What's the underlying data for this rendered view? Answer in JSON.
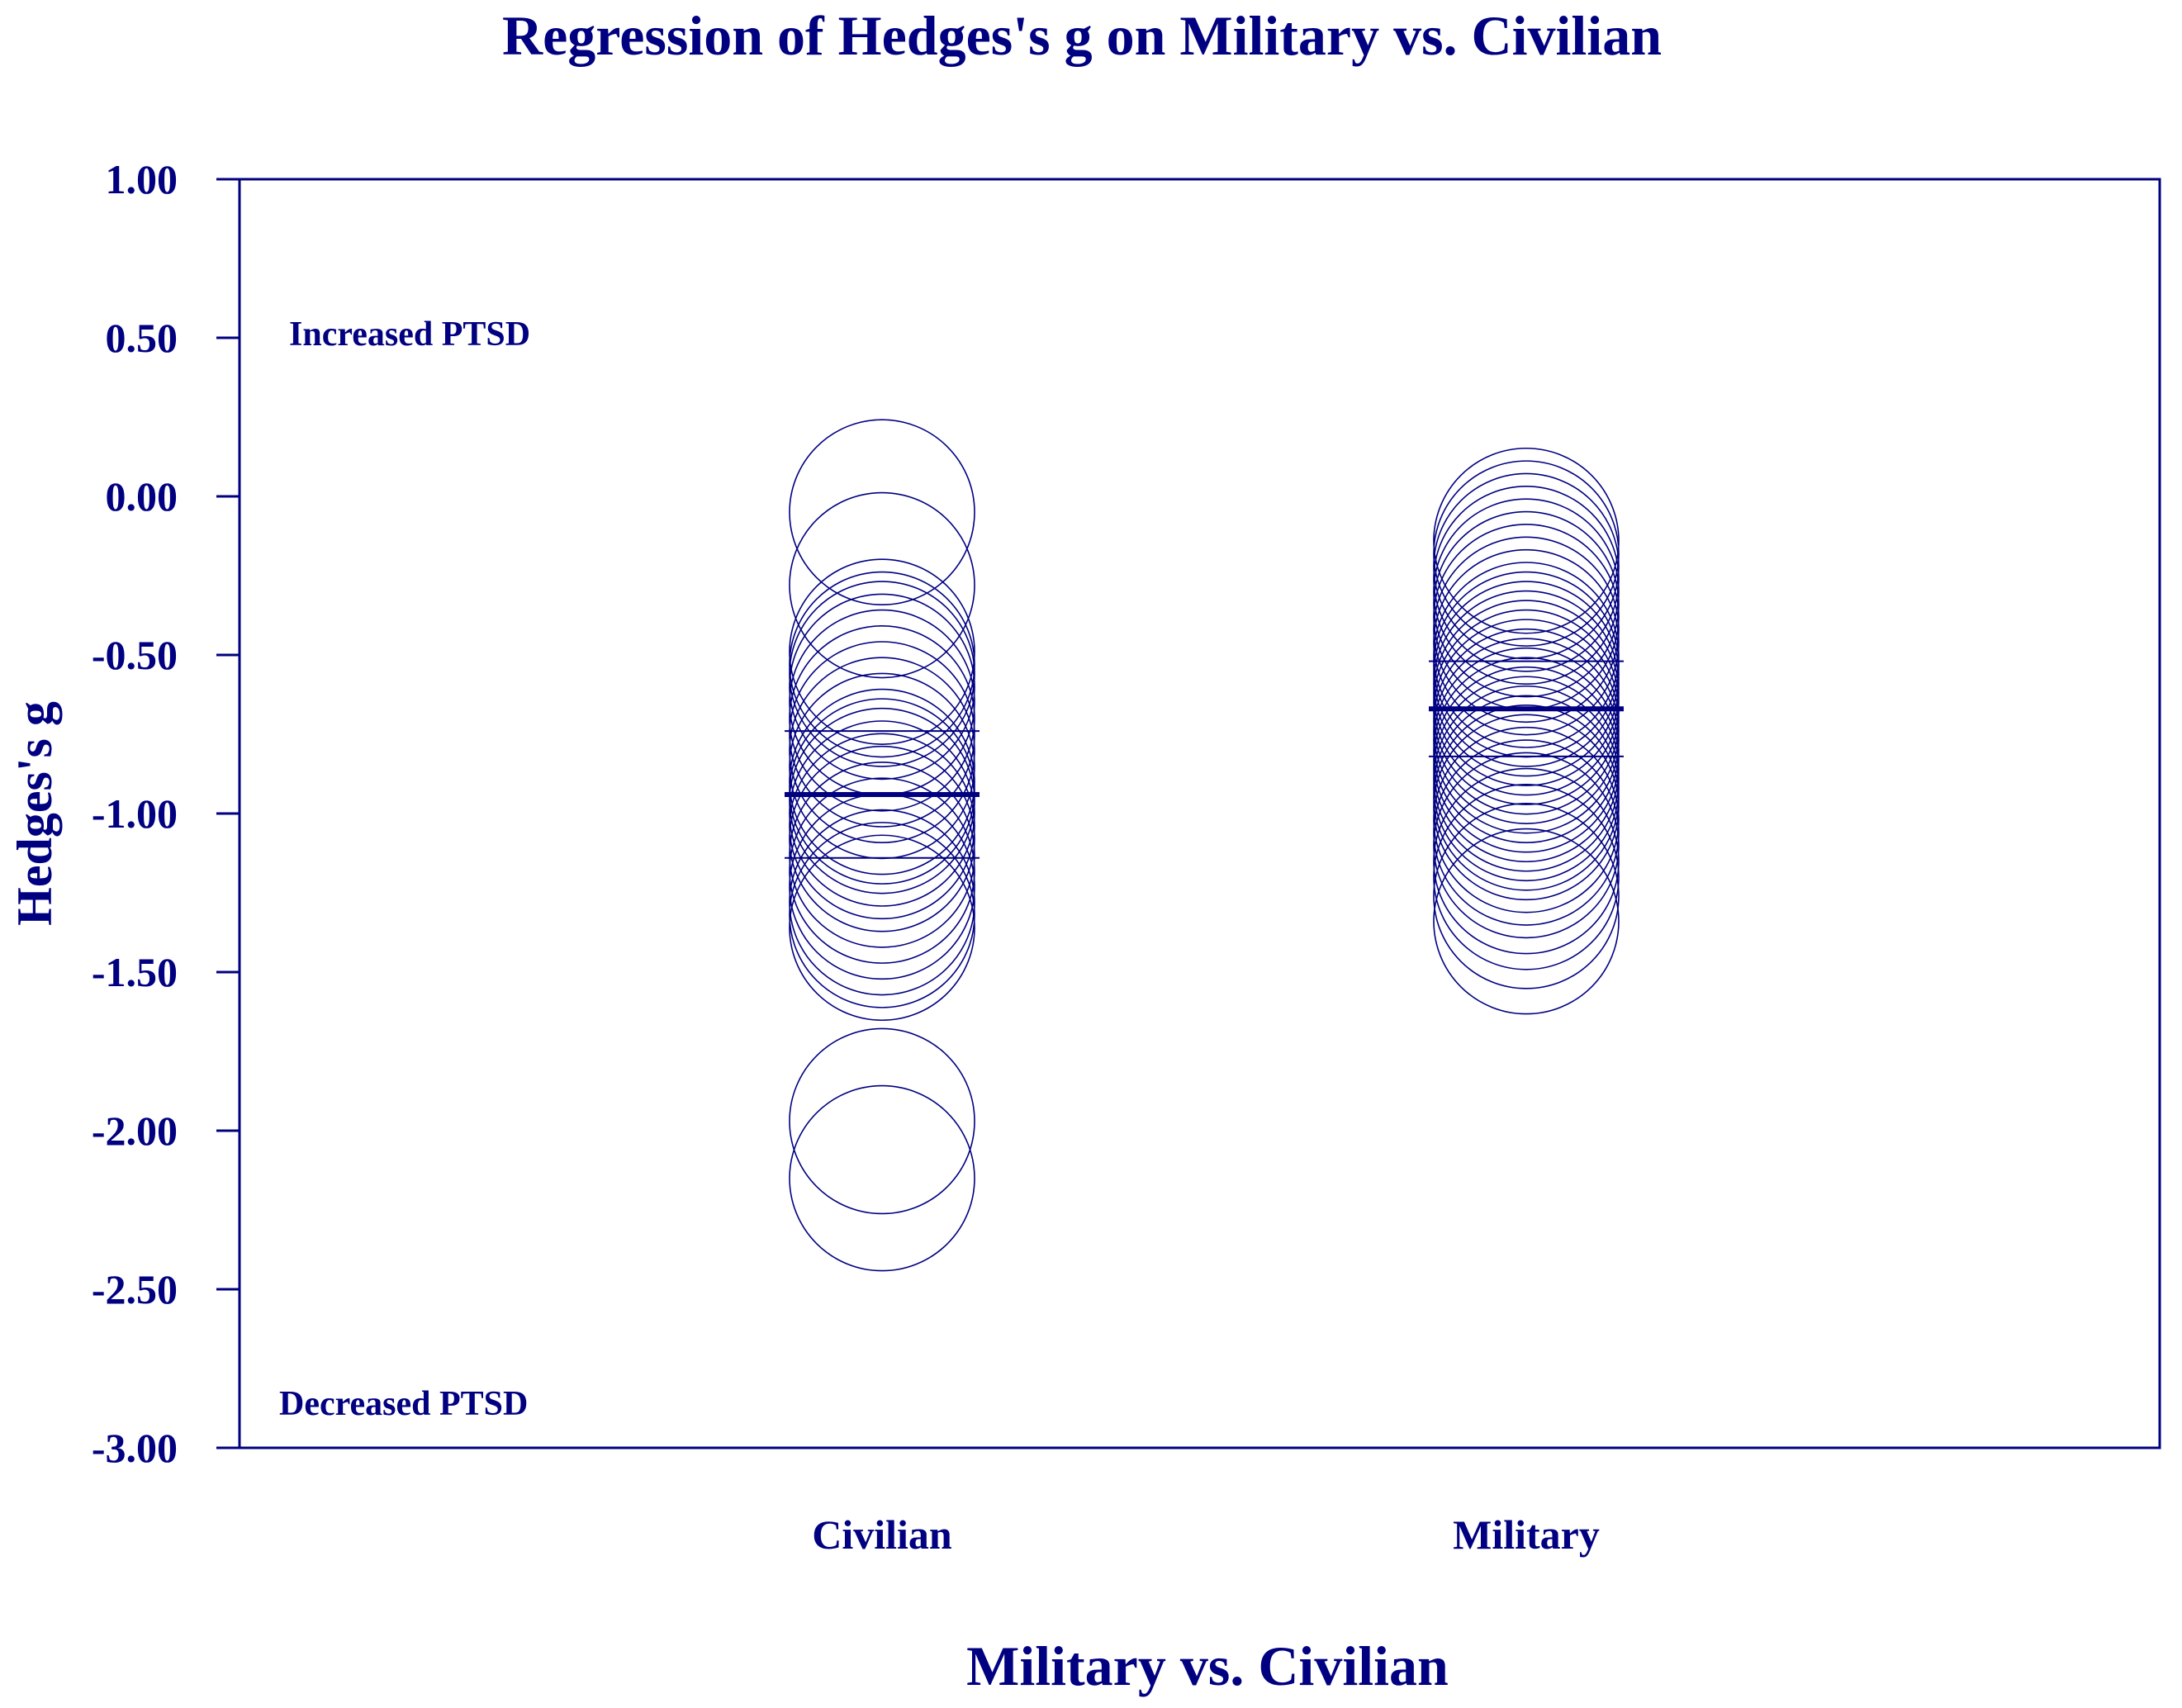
{
  "chart_data": {
    "type": "scatter",
    "title": "Regression of Hedges's g on Military vs. Civilian",
    "xlabel": "Military vs. Civilian",
    "ylabel": "Hedges's g",
    "ylim": [
      -3.0,
      1.0
    ],
    "y_ticks": [
      "1.00",
      "0.50",
      "0.00",
      "-0.50",
      "-1.00",
      "-1.50",
      "-2.00",
      "-2.50",
      "-3.00"
    ],
    "categories": [
      "Civilian",
      "Military"
    ],
    "annotations": {
      "top": "Increased PTSD",
      "bottom": "Decreased  PTSD"
    },
    "color": "#000080",
    "marker": "hollow circle",
    "groups": [
      {
        "category": "Civilian",
        "mean": -0.94,
        "ci_upper": -0.74,
        "ci_lower": -1.14,
        "points": [
          -0.05,
          -0.28,
          -0.49,
          -0.53,
          -0.56,
          -0.6,
          -0.65,
          -0.7,
          -0.75,
          -0.8,
          -0.85,
          -0.9,
          -0.93,
          -0.96,
          -1.0,
          -1.04,
          -1.08,
          -1.13,
          -1.18,
          -1.23,
          -1.28,
          -1.32,
          -1.36,
          -1.97,
          -2.15
        ]
      },
      {
        "category": "Military",
        "mean": -0.67,
        "ci_upper": -0.52,
        "ci_lower": -0.82,
        "points": [
          -0.14,
          -0.18,
          -0.22,
          -0.26,
          -0.3,
          -0.34,
          -0.38,
          -0.42,
          -0.46,
          -0.5,
          -0.53,
          -0.56,
          -0.59,
          -0.62,
          -0.65,
          -0.68,
          -0.71,
          -0.74,
          -0.77,
          -0.8,
          -0.83,
          -0.86,
          -0.89,
          -0.92,
          -0.95,
          -0.98,
          -1.02,
          -1.06,
          -1.1,
          -1.15,
          -1.2,
          -1.26,
          -1.34
        ]
      }
    ]
  }
}
